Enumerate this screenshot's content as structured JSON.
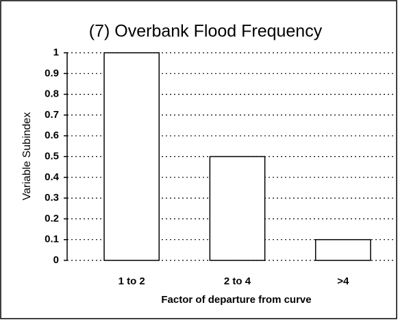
{
  "chart_data": {
    "type": "bar",
    "title": "(7) Overbank Flood Frequency",
    "x_label": "Factor of departure from curve",
    "y_label": "Variable Subindex",
    "categories": [
      "1 to 2",
      "2 to 4",
      ">4"
    ],
    "values": [
      1,
      0.5,
      0.1
    ],
    "color": "#ffffff",
    "ylim": [
      0,
      1
    ],
    "yticks": [
      0,
      0.1,
      0.2,
      0.3,
      0.4,
      0.5,
      0.6,
      0.7,
      0.8,
      0.9,
      1
    ],
    "grid": true
  }
}
